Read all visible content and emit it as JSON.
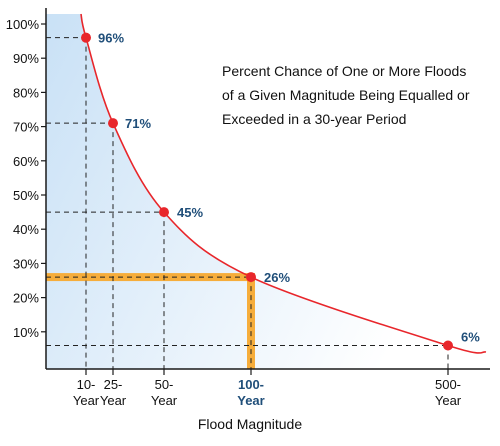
{
  "chart_data": {
    "type": "line",
    "title_lines": [
      "Percent Chance of One or More Floods",
      "of a Given Magnitude Being Equalled or",
      "Exceeded in a 30-year Period"
    ],
    "xlabel": "Flood Magnitude",
    "ylabel": "",
    "ylim": [
      0,
      100
    ],
    "y_ticks": [
      {
        "value": 10,
        "label": "10%"
      },
      {
        "value": 20,
        "label": "20%"
      },
      {
        "value": 30,
        "label": "30%"
      },
      {
        "value": 40,
        "label": "40%"
      },
      {
        "value": 50,
        "label": "50%"
      },
      {
        "value": 60,
        "label": "60%"
      },
      {
        "value": 70,
        "label": "70%"
      },
      {
        "value": 80,
        "label": "80%"
      },
      {
        "value": 90,
        "label": "90%"
      },
      {
        "value": 100,
        "label": "100%"
      }
    ],
    "points": [
      {
        "x_label": [
          "10-",
          "Year"
        ],
        "return_period": 10,
        "value": 96,
        "label": "96%",
        "highlight": false
      },
      {
        "x_label": [
          "25-",
          "Year"
        ],
        "return_period": 25,
        "value": 71,
        "label": "71%",
        "highlight": false
      },
      {
        "x_label": [
          "50-",
          "Year"
        ],
        "return_period": 50,
        "value": 45,
        "label": "45%",
        "highlight": false
      },
      {
        "x_label": [
          "100-",
          "Year"
        ],
        "return_period": 100,
        "value": 26,
        "label": "26%",
        "highlight": true
      },
      {
        "x_label": [
          "500-",
          "Year"
        ],
        "return_period": 500,
        "value": 6,
        "label": "6%",
        "highlight": false
      }
    ],
    "grid": false,
    "guide_lines": "dashed",
    "colors": {
      "curve": "#e8262b",
      "points": "#e8262b",
      "axis": "#1a1a1a",
      "fill_top": "#c9e1f6",
      "fill_bottom": "#ffffff",
      "highlight": "#f6ad3b",
      "label_text": "#1f4e79"
    }
  }
}
